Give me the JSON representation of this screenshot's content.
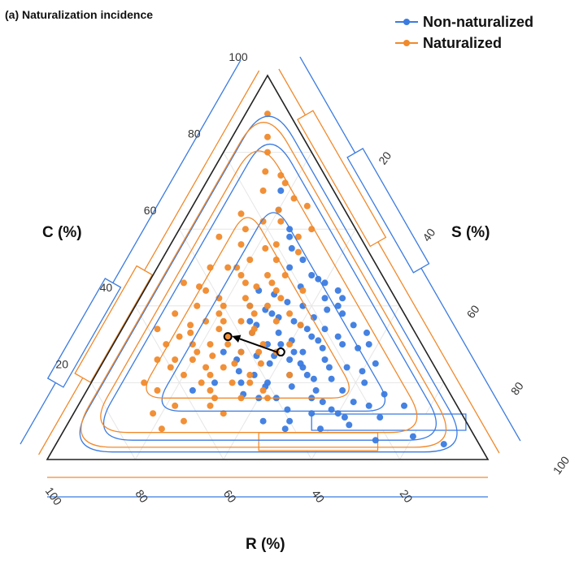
{
  "panel_title": "(a) Naturalization incidence",
  "colors": {
    "non_naturalized": "#3b7be0",
    "naturalized": "#f08a2c",
    "axis": "#222222",
    "grid": "#e6e6e6"
  },
  "chart_data": {
    "type": "scatter",
    "subtype": "ternary",
    "title": "(a) Naturalization incidence",
    "axes": {
      "C": {
        "label": "C (%)",
        "range": [
          0,
          100
        ],
        "ticks": [
          20,
          40,
          60,
          80,
          100
        ]
      },
      "S": {
        "label": "S (%)",
        "range": [
          0,
          100
        ],
        "ticks": [
          20,
          40,
          60,
          80,
          100
        ]
      },
      "R": {
        "label": "R (%)",
        "range": [
          0,
          100
        ],
        "ticks": [
          20,
          40,
          60,
          80,
          100
        ]
      }
    },
    "legend": {
      "placement": "top-right"
    },
    "series": [
      {
        "name": "Non-naturalized",
        "color": "#3b7be0",
        "centroid": {
          "C": 28,
          "S": 39,
          "R": 33
        },
        "points": [
          [
            28,
            42,
            30
          ],
          [
            22,
            48,
            30
          ],
          [
            35,
            40,
            25
          ],
          [
            18,
            52,
            30
          ],
          [
            30,
            35,
            35
          ],
          [
            25,
            45,
            30
          ],
          [
            40,
            38,
            22
          ],
          [
            15,
            55,
            30
          ],
          [
            32,
            44,
            24
          ],
          [
            20,
            40,
            40
          ],
          [
            26,
            50,
            24
          ],
          [
            38,
            32,
            30
          ],
          [
            12,
            60,
            28
          ],
          [
            28,
            30,
            42
          ],
          [
            45,
            35,
            20
          ],
          [
            24,
            56,
            20
          ],
          [
            34,
            46,
            20
          ],
          [
            16,
            44,
            40
          ],
          [
            30,
            52,
            18
          ],
          [
            22,
            36,
            42
          ],
          [
            42,
            42,
            16
          ],
          [
            10,
            50,
            40
          ],
          [
            36,
            28,
            36
          ],
          [
            20,
            62,
            18
          ],
          [
            50,
            30,
            20
          ],
          [
            27,
            38,
            35
          ],
          [
            14,
            66,
            20
          ],
          [
            33,
            36,
            31
          ],
          [
            19,
            46,
            35
          ],
          [
            40,
            46,
            14
          ],
          [
            8,
            58,
            34
          ],
          [
            44,
            26,
            30
          ],
          [
            25,
            62,
            13
          ],
          [
            31,
            40,
            29
          ],
          [
            17,
            36,
            47
          ],
          [
            55,
            28,
            17
          ],
          [
            21,
            54,
            25
          ],
          [
            37,
            42,
            21
          ],
          [
            13,
            48,
            39
          ],
          [
            29,
            48,
            23
          ],
          [
            48,
            36,
            16
          ],
          [
            23,
            32,
            45
          ],
          [
            11,
            70,
            19
          ],
          [
            35,
            52,
            13
          ],
          [
            39,
            30,
            31
          ],
          [
            18,
            58,
            24
          ],
          [
            26,
            42,
            32
          ],
          [
            60,
            25,
            15
          ],
          [
            9,
            64,
            27
          ],
          [
            33,
            30,
            37
          ],
          [
            24,
            46,
            30
          ],
          [
            41,
            34,
            25
          ],
          [
            16,
            52,
            32
          ],
          [
            29,
            56,
            15
          ],
          [
            36,
            38,
            26
          ],
          [
            20,
            28,
            52
          ],
          [
            46,
            40,
            14
          ],
          [
            12,
            54,
            34
          ],
          [
            31,
            46,
            23
          ],
          [
            27,
            34,
            39
          ],
          [
            5,
            72,
            23
          ],
          [
            52,
            32,
            16
          ],
          [
            19,
            40,
            41
          ],
          [
            38,
            48,
            14
          ],
          [
            23,
            60,
            17
          ],
          [
            43,
            30,
            27
          ],
          [
            15,
            62,
            23
          ],
          [
            34,
            42,
            24
          ],
          [
            28,
            26,
            46
          ],
          [
            21,
            50,
            29
          ],
          [
            65,
            20,
            15
          ],
          [
            10,
            44,
            46
          ],
          [
            30,
            58,
            12
          ],
          [
            37,
            34,
            29
          ],
          [
            17,
            68,
            15
          ],
          [
            47,
            38,
            15
          ],
          [
            25,
            38,
            37
          ],
          [
            13,
            58,
            29
          ],
          [
            39,
            44,
            17
          ],
          [
            22,
            44,
            34
          ],
          [
            6,
            80,
            14
          ],
          [
            58,
            26,
            16
          ],
          [
            32,
            50,
            18
          ],
          [
            26,
            30,
            44
          ],
          [
            14,
            74,
            12
          ],
          [
            42,
            46,
            12
          ],
          [
            20,
            34,
            46
          ],
          [
            35,
            30,
            35
          ],
          [
            11,
            62,
            27
          ],
          [
            28,
            44,
            28
          ],
          [
            70,
            18,
            12
          ],
          [
            18,
            24,
            58
          ],
          [
            44,
            44,
            12
          ],
          [
            8,
            50,
            42
          ],
          [
            33,
            56,
            11
          ],
          [
            40,
            26,
            34
          ],
          [
            24,
            52,
            24
          ],
          [
            16,
            40,
            44
          ],
          [
            30,
            38,
            32
          ],
          [
            4,
            88,
            8
          ]
        ]
      },
      {
        "name": "Naturalized",
        "color": "#f08a2c",
        "centroid": {
          "C": 32,
          "S": 25,
          "R": 43
        },
        "points": [
          [
            32,
            25,
            43
          ],
          [
            40,
            20,
            40
          ],
          [
            25,
            30,
            45
          ],
          [
            35,
            15,
            50
          ],
          [
            45,
            25,
            30
          ],
          [
            28,
            20,
            52
          ],
          [
            50,
            18,
            32
          ],
          [
            22,
            35,
            43
          ],
          [
            38,
            28,
            34
          ],
          [
            30,
            12,
            58
          ],
          [
            55,
            22,
            23
          ],
          [
            20,
            25,
            55
          ],
          [
            42,
            32,
            26
          ],
          [
            34,
            22,
            44
          ],
          [
            26,
            16,
            58
          ],
          [
            60,
            15,
            25
          ],
          [
            18,
            40,
            42
          ],
          [
            48,
            30,
            22
          ],
          [
            36,
            18,
            46
          ],
          [
            24,
            28,
            48
          ],
          [
            65,
            20,
            15
          ],
          [
            30,
            34,
            36
          ],
          [
            44,
            14,
            42
          ],
          [
            16,
            30,
            54
          ],
          [
            52,
            26,
            22
          ],
          [
            38,
            10,
            52
          ],
          [
            28,
            38,
            34
          ],
          [
            70,
            14,
            16
          ],
          [
            22,
            20,
            58
          ],
          [
            46,
            22,
            32
          ],
          [
            33,
            30,
            37
          ],
          [
            58,
            28,
            14
          ],
          [
            14,
            22,
            64
          ],
          [
            40,
            26,
            34
          ],
          [
            26,
            12,
            62
          ],
          [
            62,
            22,
            16
          ],
          [
            20,
            36,
            44
          ],
          [
            50,
            12,
            38
          ],
          [
            36,
            34,
            30
          ],
          [
            30,
            18,
            52
          ],
          [
            75,
            12,
            13
          ],
          [
            12,
            34,
            54
          ],
          [
            44,
            30,
            26
          ],
          [
            34,
            8,
            58
          ],
          [
            56,
            16,
            28
          ],
          [
            24,
            24,
            52
          ],
          [
            42,
            18,
            40
          ],
          [
            18,
            16,
            66
          ],
          [
            66,
            26,
            8
          ],
          [
            28,
            30,
            42
          ],
          [
            48,
            20,
            32
          ],
          [
            38,
            36,
            26
          ],
          [
            16,
            42,
            42
          ],
          [
            54,
            30,
            16
          ],
          [
            32,
            14,
            54
          ],
          [
            80,
            10,
            10
          ],
          [
            22,
            44,
            34
          ],
          [
            46,
            8,
            46
          ],
          [
            27,
            24,
            49
          ],
          [
            60,
            30,
            10
          ],
          [
            10,
            26,
            64
          ],
          [
            40,
            14,
            46
          ],
          [
            35,
            40,
            25
          ],
          [
            72,
            18,
            10
          ],
          [
            20,
            12,
            68
          ],
          [
            52,
            20,
            28
          ],
          [
            30,
            26,
            44
          ],
          [
            44,
            36,
            20
          ],
          [
            14,
            30,
            56
          ],
          [
            64,
            12,
            24
          ],
          [
            36,
            22,
            42
          ],
          [
            25,
            36,
            39
          ],
          [
            84,
            8,
            8
          ],
          [
            18,
            28,
            54
          ],
          [
            48,
            26,
            26
          ],
          [
            34,
            30,
            36
          ],
          [
            58,
            10,
            32
          ],
          [
            24,
            16,
            60
          ],
          [
            42,
            24,
            34
          ],
          [
            12,
            18,
            70
          ],
          [
            68,
            22,
            10
          ],
          [
            30,
            40,
            30
          ],
          [
            50,
            16,
            34
          ],
          [
            20,
            32,
            48
          ],
          [
            38,
            20,
            42
          ],
          [
            90,
            5,
            5
          ],
          [
            26,
            20,
            54
          ],
          [
            46,
            28,
            26
          ],
          [
            16,
            36,
            48
          ],
          [
            56,
            24,
            20
          ],
          [
            33,
            16,
            51
          ],
          [
            40,
            30,
            30
          ],
          [
            8,
            22,
            70
          ],
          [
            62,
            18,
            20
          ],
          [
            28,
            34,
            38
          ],
          [
            45,
            12,
            43
          ],
          [
            22,
            26,
            52
          ],
          [
            74,
            16,
            10
          ],
          [
            36,
            26,
            38
          ],
          [
            30,
            22,
            48
          ]
        ]
      }
    ]
  }
}
